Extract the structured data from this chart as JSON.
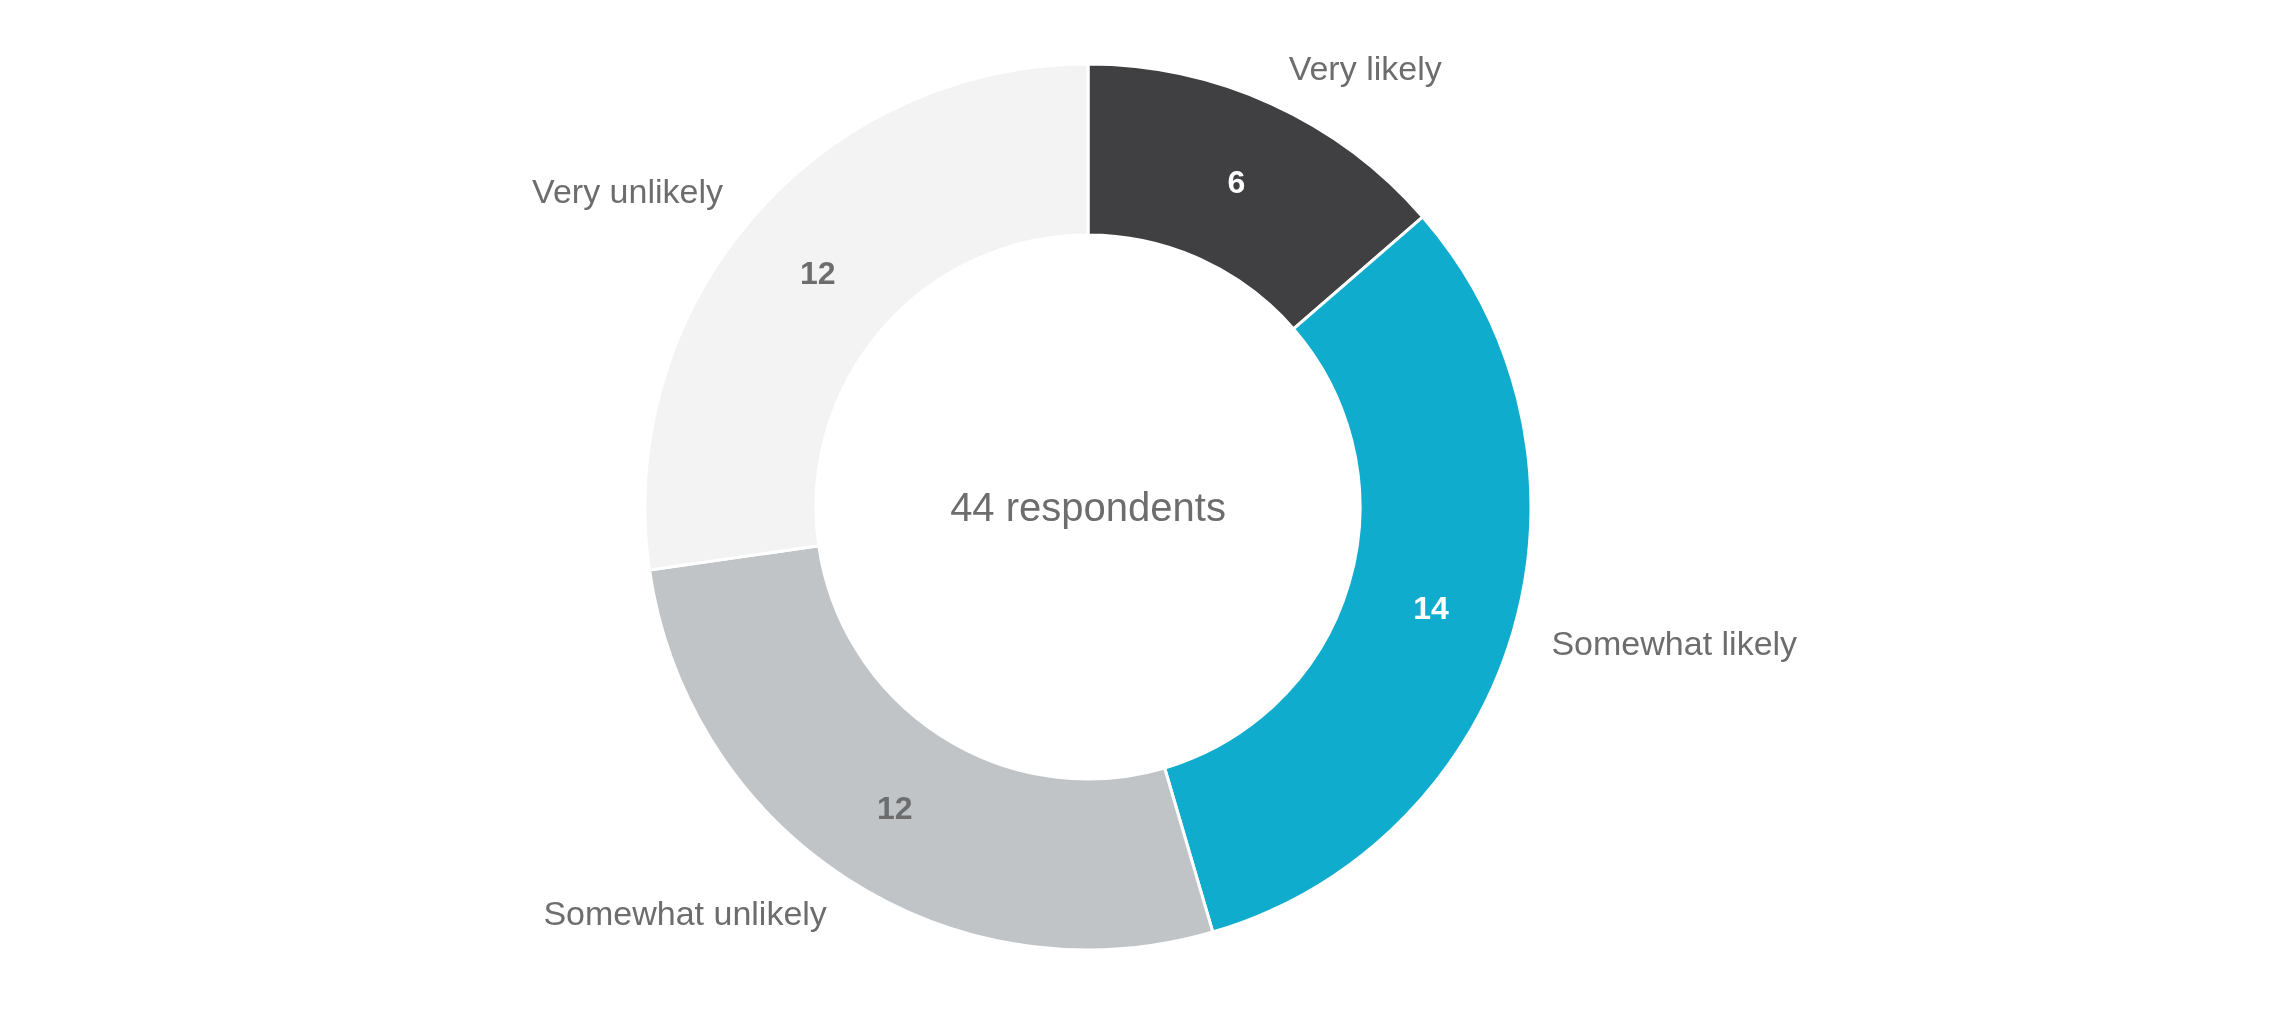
{
  "chart_data": {
    "type": "donut",
    "categories": [
      "Very likely",
      "Somewhat likely",
      "Somewhat unlikely",
      "Very unlikely"
    ],
    "values": [
      6,
      14,
      12,
      12
    ],
    "colors": [
      "#404042",
      "#10acce",
      "#c1c4c7",
      "#f3f3f3"
    ],
    "data_labels": true,
    "annotations": [
      "44 respondents"
    ],
    "legend": false
  }
}
